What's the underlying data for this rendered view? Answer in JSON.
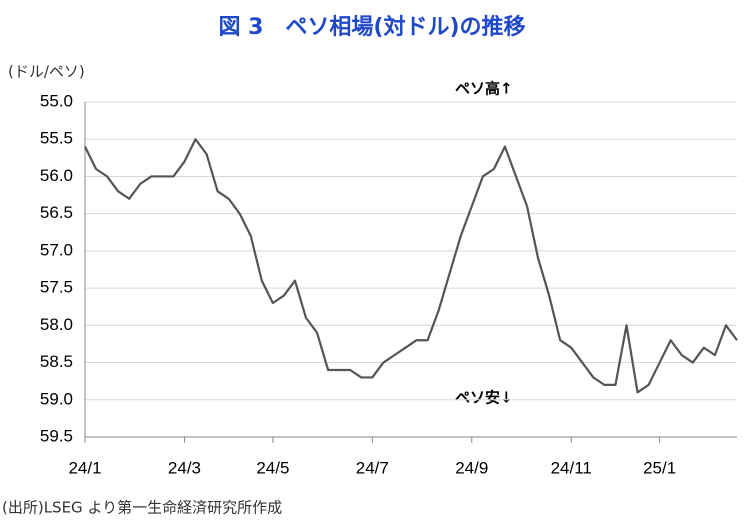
{
  "chart_data": {
    "type": "line",
    "title": "図 3　ペソ相場(対ドル)の推移",
    "y_axis_label": "(ドル/ペソ)",
    "annotations": [
      "ペソ高↑",
      "ペソ安↓"
    ],
    "source": "(出所)LSEG より第一生命経済研究所作成",
    "categories": [
      "24/1",
      null,
      null,
      null,
      null,
      null,
      null,
      null,
      null,
      "24/3",
      null,
      null,
      null,
      null,
      null,
      null,
      null,
      "24/5",
      null,
      null,
      null,
      null,
      null,
      null,
      null,
      null,
      "24/7",
      null,
      null,
      null,
      null,
      null,
      null,
      null,
      null,
      "24/9",
      null,
      null,
      null,
      null,
      null,
      null,
      null,
      null,
      "24/11",
      null,
      null,
      null,
      null,
      null,
      null,
      null,
      "25/1",
      null,
      null,
      null,
      null,
      null,
      null,
      null
    ],
    "series": [
      {
        "name": "ペソ相場",
        "color": "#555555",
        "values": [
          55.6,
          55.9,
          56.0,
          56.2,
          56.3,
          56.1,
          56.0,
          56.0,
          56.0,
          55.8,
          55.5,
          55.7,
          56.2,
          56.3,
          56.5,
          56.8,
          57.4,
          57.7,
          57.6,
          57.4,
          57.9,
          58.1,
          58.6,
          58.6,
          58.6,
          58.7,
          58.7,
          58.5,
          58.4,
          58.3,
          58.2,
          58.2,
          57.8,
          57.3,
          56.8,
          56.4,
          56.0,
          55.9,
          55.6,
          56.0,
          56.4,
          57.1,
          57.6,
          58.2,
          58.3,
          58.5,
          58.7,
          58.8,
          58.8,
          58.0,
          58.9,
          58.8,
          58.5,
          58.2,
          58.4,
          58.5,
          58.3,
          58.4,
          58.0,
          58.2
        ]
      }
    ],
    "ylim": [
      59.5,
      55.0
    ],
    "yticks": [
      {
        "value": 55,
        "label": "55.0"
      },
      {
        "value": 55.5,
        "label": "55.5"
      },
      {
        "value": 56,
        "label": "56.0"
      },
      {
        "value": 56.5,
        "label": "56.5"
      },
      {
        "value": 57,
        "label": "57.0"
      },
      {
        "value": 57.5,
        "label": "57.5"
      },
      {
        "value": 58,
        "label": "58.0"
      },
      {
        "value": 58.5,
        "label": "58.5"
      },
      {
        "value": 59,
        "label": "59.0"
      },
      {
        "value": 59.5,
        "label": "59.5"
      }
    ],
    "grid": true
  }
}
